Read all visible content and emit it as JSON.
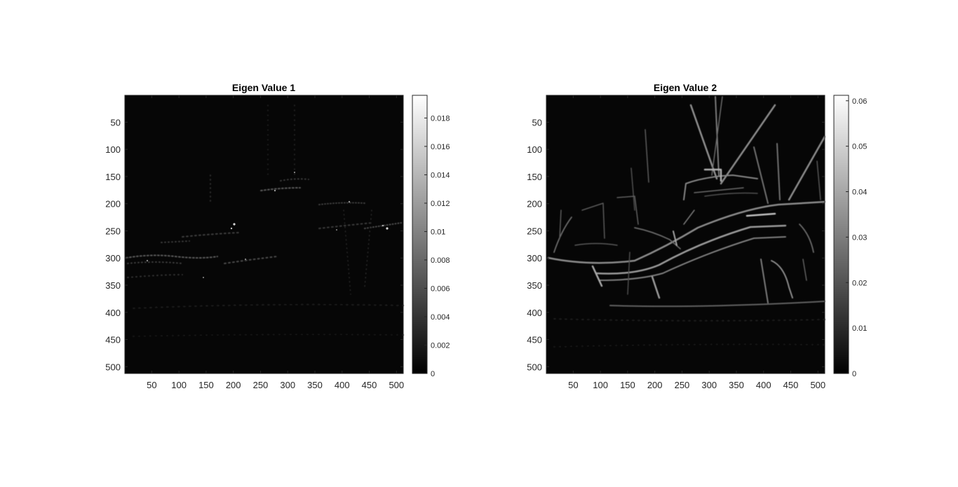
{
  "chart_data": [
    {
      "type": "heatmap",
      "title": "Eigen Value 1",
      "colormap": "gray",
      "xlim": [
        0.5,
        512.5
      ],
      "ylim": [
        0.5,
        512.5
      ],
      "y_direction": "reverse",
      "xticks": [
        50,
        100,
        150,
        200,
        250,
        300,
        350,
        400,
        450,
        500
      ],
      "yticks": [
        50,
        100,
        150,
        200,
        250,
        300,
        350,
        400,
        450,
        500
      ],
      "colorbar": {
        "range": [
          0,
          0.0196
        ],
        "ticks": [
          0,
          0.002,
          0.004,
          0.006,
          0.008,
          0.01,
          0.012,
          0.014,
          0.016,
          0.018
        ],
        "tick_labels": [
          "0",
          "0.002",
          "0.004",
          "0.006",
          "0.008",
          "0.01",
          "0.012",
          "0.014",
          "0.016",
          "0.018"
        ]
      },
      "grid": false
    },
    {
      "type": "heatmap",
      "title": "Eigen Value 2",
      "colormap": "gray",
      "xlim": [
        0.5,
        512.5
      ],
      "ylim": [
        0.5,
        512.5
      ],
      "y_direction": "reverse",
      "xticks": [
        50,
        100,
        150,
        200,
        250,
        300,
        350,
        400,
        450,
        500
      ],
      "yticks": [
        50,
        100,
        150,
        200,
        250,
        300,
        350,
        400,
        450,
        500
      ],
      "colorbar": {
        "range": [
          0,
          0.0612
        ],
        "ticks": [
          0,
          0.01,
          0.02,
          0.03,
          0.04,
          0.05,
          0.06
        ],
        "tick_labels": [
          "0",
          "0.01",
          "0.02",
          "0.03",
          "0.04",
          "0.05",
          "0.06"
        ]
      },
      "grid": false
    }
  ],
  "colors": {
    "background": "#ffffff",
    "image_base": "#060606",
    "axis": "#262626",
    "tick_text": "#262626"
  }
}
